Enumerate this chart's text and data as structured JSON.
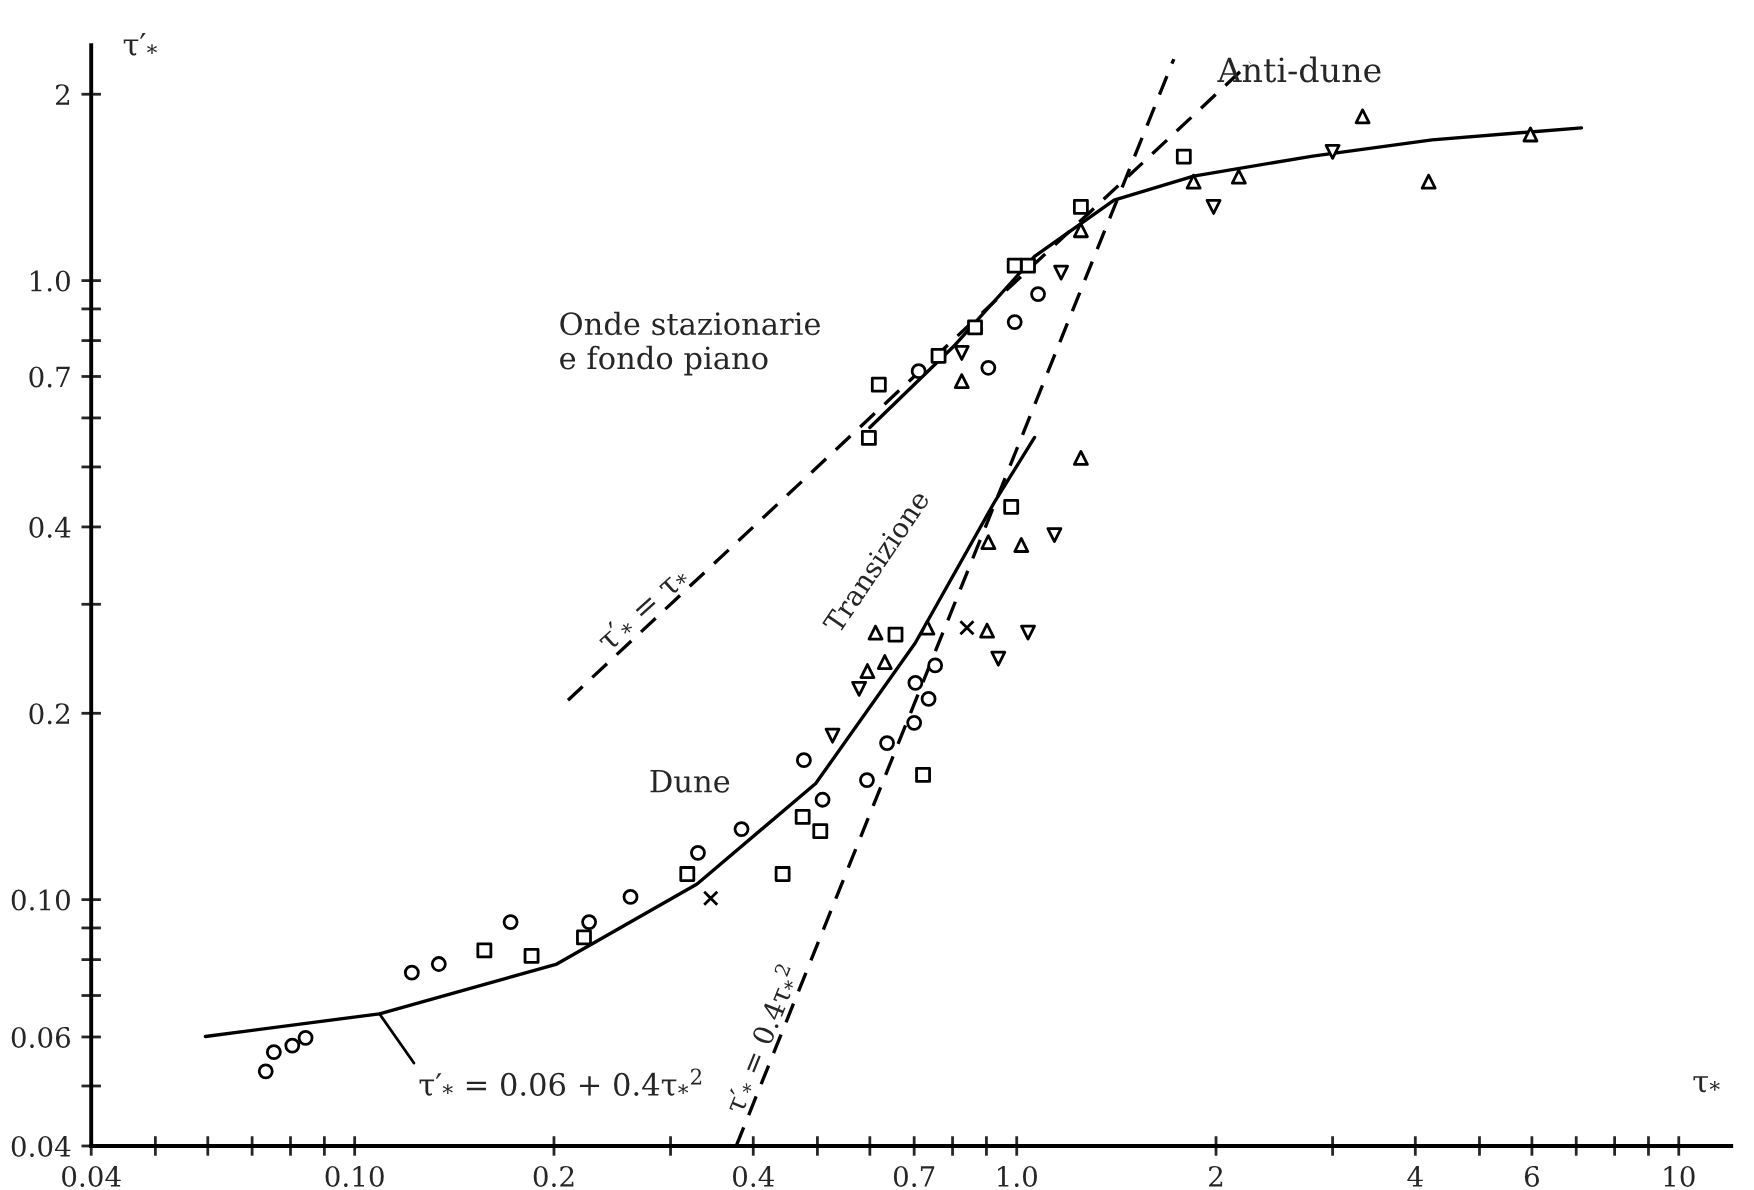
{
  "chart_data": {
    "type": "scatter",
    "xlabel": "τ$_{*}$",
    "ylabel": "τ′$_{*}$",
    "log": "xy",
    "grid": false,
    "legend": false,
    "xlim": [
      0.04,
      12
    ],
    "ylim": [
      0.04,
      2.4
    ],
    "xticks": [
      0.04,
      {
        "value": 0.05,
        "label": null
      },
      {
        "value": 0.06,
        "label": null
      },
      {
        "value": 0.07,
        "label": null
      },
      {
        "value": 0.08,
        "label": null
      },
      {
        "value": 0.09,
        "label": null
      },
      {
        "value": 0.1,
        "label": "0.10"
      },
      0.2,
      {
        "value": 0.3,
        "label": null
      },
      0.4,
      {
        "value": 0.5,
        "label": null
      },
      {
        "value": 0.6,
        "label": null
      },
      0.7,
      {
        "value": 0.8,
        "label": null
      },
      {
        "value": 0.9,
        "label": null
      },
      {
        "value": 1,
        "label": "1.0"
      },
      2,
      {
        "value": 3,
        "label": null
      },
      4,
      {
        "value": 5,
        "label": null
      },
      6,
      {
        "value": 7,
        "label": null
      },
      {
        "value": 8,
        "label": null
      },
      {
        "value": 9,
        "label": null
      },
      10
    ],
    "yticks": [
      0.04,
      {
        "value": 0.05,
        "label": null
      },
      0.06,
      {
        "value": 0.07,
        "label": null
      },
      {
        "value": 0.08,
        "label": null
      },
      {
        "value": 0.09,
        "label": null
      },
      {
        "value": 0.1,
        "label": "0.10"
      },
      0.2,
      {
        "value": 0.3,
        "label": null
      },
      0.4,
      {
        "value": 0.5,
        "label": null
      },
      {
        "value": 0.6,
        "label": null
      },
      0.7,
      {
        "value": 0.8,
        "label": null
      },
      {
        "value": 0.9,
        "label": null
      },
      {
        "value": 1,
        "label": "1.0"
      },
      2
    ],
    "series": [
      {
        "marker": "circle",
        "color": "#000000",
        "x": [
          0.0734,
          0.0755,
          0.0805,
          0.0843,
          0.122,
          0.134,
          0.384,
          0.477
        ],
        "values": [
          0.0528,
          0.0567,
          0.0581,
          0.0598,
          0.0762,
          0.0787,
          0.13,
          0.168
        ]
      },
      {
        "marker": "circle",
        "color": "#000000",
        "x": [
          0.172,
          0.226,
          0.261,
          0.33,
          0.594,
          0.637,
          0.7,
          0.703,
          0.753,
          0.736,
          0.509,
          0.711,
          0.906,
          0.993,
          1.077
        ],
        "values": [
          0.092,
          0.092,
          0.101,
          0.119,
          0.156,
          0.179,
          0.193,
          0.224,
          0.239,
          0.211,
          0.145,
          0.714,
          0.723,
          0.857,
          0.951
        ]
      },
      {
        "marker": "square",
        "color": "#000000",
        "x": [
          0.443
        ],
        "values": [
          0.11
        ]
      },
      {
        "marker": "square",
        "color": "#000000",
        "x": [
          0.157,
          0.185,
          0.222,
          0.318,
          0.475,
          0.505,
          0.722,
          0.656,
          0.981,
          0.598,
          0.619,
          0.762,
          0.865,
          0.993,
          1.04,
          1.25,
          1.788
        ],
        "values": [
          0.0828,
          0.0811,
          0.0869,
          0.11,
          0.136,
          0.129,
          0.159,
          0.268,
          0.431,
          0.557,
          0.679,
          0.756,
          0.84,
          1.057,
          1.057,
          1.315,
          1.586
        ]
      },
      {
        "marker": "cross",
        "color": "#000000",
        "x": [
          0.345,
          0.841
        ],
        "values": [
          0.1005,
          0.275
        ]
      },
      {
        "marker": "triangle",
        "color": "#000000",
        "x": [
          0.612,
          0.733,
          0.902,
          0.595,
          0.632,
          1.25,
          1.016,
          0.906,
          0.826,
          1.25,
          1.85,
          2.165,
          3.33,
          4.19,
          5.97
        ],
        "values": [
          0.27,
          0.275,
          0.272,
          0.234,
          0.242,
          0.517,
          0.374,
          0.378,
          0.688,
          1.206,
          1.445,
          1.472,
          1.842,
          1.445,
          1.722
        ]
      },
      {
        "marker": "triangle_down",
        "color": "#000000",
        "x": [
          0.578,
          0.527,
          1.04,
          0.938,
          1.14,
          0.826,
          1.167,
          1.983,
          3.0
        ],
        "values": [
          0.219,
          0.184,
          0.27,
          0.245,
          0.388,
          0.764,
          1.03,
          1.315,
          1.614
        ]
      },
      {
        "type": "line",
        "line_style": "solid",
        "color": "#000000",
        "x": [
          0.0595,
          0.109,
          0.202,
          0.329,
          0.497,
          0.703,
          0.927,
          1.064
        ],
        "values": [
          0.0601,
          0.0654,
          0.0787,
          0.106,
          0.154,
          0.26,
          0.44,
          0.558
        ]
      },
      {
        "type": "line",
        "line_style": "solid",
        "color": "#000000",
        "x": [
          0.6,
          0.807,
          1.064,
          1.403,
          1.85,
          2.8,
          4.24,
          7.13
        ],
        "values": [
          0.579,
          0.787,
          1.094,
          1.349,
          1.475,
          1.589,
          1.688,
          1.765
        ]
      },
      {
        "type": "line",
        "line_style": "dashed",
        "color": "#000000",
        "x": [
          0.21,
          2.25
        ],
        "values": [
          0.21,
          2.25
        ]
      },
      {
        "type": "line",
        "line_style": "dashed",
        "color": "#000000",
        "x": [
          0.377,
          1.727
        ],
        "values": [
          0.04,
          2.28
        ]
      }
    ],
    "annotations": [
      "Onde stazionarie\ne fondo piano",
      "Transizione",
      "Dune",
      "Anti-dune",
      "τ′$_{*}$ = τ$_{*}$",
      "τ′$_{*}$ = 0.4τ$_{*}$$^{2}$",
      {
        "text": "τ′$_{*}$ = 0.06 + 0.4τ$_{*}$$^{2}$",
        "x": 0.109,
        "y": 0.0654
      }
    ]
  }
}
